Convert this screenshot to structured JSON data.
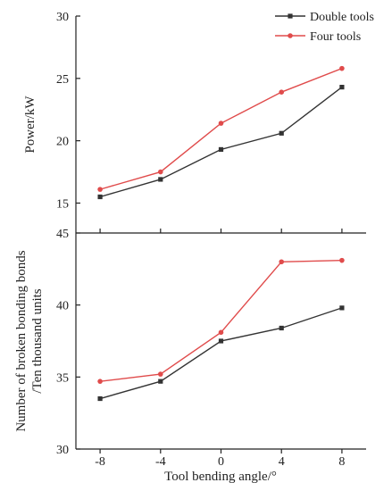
{
  "chart_data": {
    "type": "line",
    "x_shared": {
      "label": "Tool bending angle/°",
      "values": [
        -8,
        -4,
        0,
        4,
        8
      ],
      "tick_labels": [
        "-8",
        "-4",
        "0",
        "4",
        "8"
      ]
    },
    "legend": {
      "placement": "top-right",
      "entries": [
        "Double tools",
        "Four tools"
      ]
    },
    "panels": [
      {
        "id": "power",
        "ylabel_lines": [
          "Power/kW"
        ],
        "ylim": [
          12.6,
          30
        ],
        "yticks": [
          15,
          20,
          25,
          30
        ],
        "series": [
          {
            "name": "Double tools",
            "color": "#333333",
            "marker": "square",
            "values": [
              15.5,
              16.9,
              19.3,
              20.6,
              24.3
            ]
          },
          {
            "name": "Four tools",
            "color": "#e04b4b",
            "marker": "circle",
            "values": [
              16.1,
              17.5,
              21.4,
              23.9,
              25.8
            ]
          }
        ]
      },
      {
        "id": "bonds",
        "ylabel_lines": [
          "Number of broken bonding bonds",
          "/Ten thousand units"
        ],
        "ylim": [
          30,
          45
        ],
        "yticks": [
          30,
          35,
          40,
          45
        ],
        "series": [
          {
            "name": "Double tools",
            "color": "#333333",
            "marker": "square",
            "values": [
              33.5,
              34.7,
              37.5,
              38.4,
              39.8
            ]
          },
          {
            "name": "Four tools",
            "color": "#e04b4b",
            "marker": "circle",
            "values": [
              34.7,
              35.2,
              38.1,
              43.0,
              43.1
            ]
          }
        ]
      }
    ]
  }
}
